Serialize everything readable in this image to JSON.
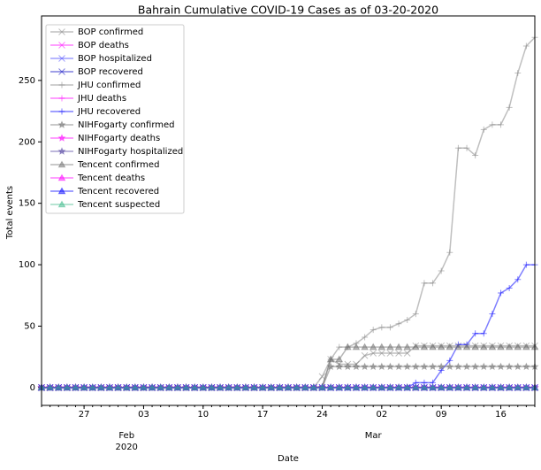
{
  "chart_data": {
    "type": "line",
    "title": "Bahrain Cumulative COVID-19 Cases as of 03-20-2020",
    "x_label": "Date",
    "y_label": "Total events",
    "alpha": 0.5,
    "legend": "upper left",
    "x": [
      "2020-01-22",
      "2020-01-23",
      "2020-01-24",
      "2020-01-25",
      "2020-01-26",
      "2020-01-27",
      "2020-01-28",
      "2020-01-29",
      "2020-01-30",
      "2020-01-31",
      "2020-02-01",
      "2020-02-02",
      "2020-02-03",
      "2020-02-04",
      "2020-02-05",
      "2020-02-06",
      "2020-02-07",
      "2020-02-08",
      "2020-02-09",
      "2020-02-10",
      "2020-02-11",
      "2020-02-12",
      "2020-02-13",
      "2020-02-14",
      "2020-02-15",
      "2020-02-16",
      "2020-02-17",
      "2020-02-18",
      "2020-02-19",
      "2020-02-20",
      "2020-02-21",
      "2020-02-22",
      "2020-02-23",
      "2020-02-24",
      "2020-02-25",
      "2020-02-26",
      "2020-02-27",
      "2020-02-28",
      "2020-02-29",
      "2020-03-01",
      "2020-03-02",
      "2020-03-03",
      "2020-03-04",
      "2020-03-05",
      "2020-03-06",
      "2020-03-07",
      "2020-03-08",
      "2020-03-09",
      "2020-03-10",
      "2020-03-11",
      "2020-03-12",
      "2020-03-13",
      "2020-03-14",
      "2020-03-15",
      "2020-03-16",
      "2020-03-17",
      "2020-03-18",
      "2020-03-19",
      "2020-03-20"
    ],
    "xlim": [
      "2020-01-22",
      "2020-03-20"
    ],
    "xticks": [
      {
        "value": "2020-01-27",
        "label": "27"
      },
      {
        "value": "2020-02-03",
        "label": "03"
      },
      {
        "value": "2020-02-10",
        "label": "10"
      },
      {
        "value": "2020-02-17",
        "label": "17"
      },
      {
        "value": "2020-02-24",
        "label": "24"
      },
      {
        "value": "2020-03-02",
        "label": "02"
      },
      {
        "value": "2020-03-09",
        "label": "09"
      },
      {
        "value": "2020-03-16",
        "label": "16"
      }
    ],
    "month_labels": [
      {
        "value": "2020-02-01",
        "label": "Feb"
      },
      {
        "value": "2020-03-01",
        "label": "Mar"
      }
    ],
    "year_labels": [
      {
        "value": "2020-02-01",
        "label": "2020"
      }
    ],
    "ylim": [
      -14.5,
      302.5
    ],
    "yticks": [
      0,
      50,
      100,
      150,
      200,
      250
    ],
    "series": [
      {
        "name": "BOP confirmed",
        "color": "#808080",
        "marker": "x",
        "values": [
          0,
          0,
          0,
          0,
          0,
          0,
          0,
          0,
          0,
          0,
          0,
          0,
          0,
          0,
          0,
          0,
          0,
          0,
          0,
          0,
          0,
          0,
          0,
          0,
          0,
          0,
          0,
          0,
          0,
          0,
          0,
          0,
          0,
          9,
          23,
          19,
          19,
          19,
          26,
          28,
          28,
          28,
          28,
          28,
          34,
          34,
          34,
          34,
          34,
          34,
          34,
          34,
          34,
          34,
          34,
          34,
          34,
          34,
          34
        ]
      },
      {
        "name": "BOP deaths",
        "color": "#ff00ff",
        "marker": "x",
        "values": [
          0,
          0,
          0,
          0,
          0,
          0,
          0,
          0,
          0,
          0,
          0,
          0,
          0,
          0,
          0,
          0,
          0,
          0,
          0,
          0,
          0,
          0,
          0,
          0,
          0,
          0,
          0,
          0,
          0,
          0,
          0,
          0,
          0,
          0,
          0,
          0,
          0,
          0,
          0,
          0,
          0,
          0,
          0,
          0,
          0,
          0,
          0,
          0,
          0,
          0,
          0,
          0,
          0,
          0,
          0,
          0,
          0,
          0,
          0
        ]
      },
      {
        "name": "BOP hospitalized",
        "color": "#4040ff",
        "marker": "x",
        "values": [
          0,
          0,
          0,
          0,
          0,
          0,
          0,
          0,
          0,
          0,
          0,
          0,
          0,
          0,
          0,
          0,
          0,
          0,
          0,
          0,
          0,
          0,
          0,
          0,
          0,
          0,
          0,
          0,
          0,
          0,
          0,
          0,
          0,
          0,
          0,
          0,
          0,
          0,
          0,
          0,
          0,
          0,
          0,
          0,
          0,
          0,
          0,
          0,
          0,
          0,
          0,
          0,
          0,
          0,
          0,
          0,
          0,
          0,
          0
        ]
      },
      {
        "name": "BOP recovered",
        "color": "#0000c0",
        "marker": "x",
        "values": [
          0,
          0,
          0,
          0,
          0,
          0,
          0,
          0,
          0,
          0,
          0,
          0,
          0,
          0,
          0,
          0,
          0,
          0,
          0,
          0,
          0,
          0,
          0,
          0,
          0,
          0,
          0,
          0,
          0,
          0,
          0,
          0,
          0,
          0,
          0,
          0,
          0,
          0,
          0,
          0,
          0,
          0,
          0,
          0,
          0,
          0,
          0,
          0,
          0,
          0,
          0,
          0,
          0,
          0,
          0,
          0,
          0,
          0,
          0
        ]
      },
      {
        "name": "JHU confirmed",
        "color": "#808080",
        "marker": "+",
        "values": [
          0,
          0,
          0,
          0,
          0,
          0,
          0,
          0,
          0,
          0,
          0,
          0,
          0,
          0,
          0,
          0,
          0,
          0,
          0,
          0,
          0,
          0,
          0,
          0,
          0,
          0,
          0,
          0,
          0,
          0,
          0,
          0,
          0,
          1,
          23,
          33,
          33,
          36,
          41,
          47,
          49,
          49,
          52,
          55,
          60,
          85,
          85,
          95,
          110,
          195,
          195,
          189,
          210,
          214,
          214,
          228,
          256,
          278,
          285
        ]
      },
      {
        "name": "JHU deaths",
        "color": "#ff00ff",
        "marker": "+",
        "values": [
          0,
          0,
          0,
          0,
          0,
          0,
          0,
          0,
          0,
          0,
          0,
          0,
          0,
          0,
          0,
          0,
          0,
          0,
          0,
          0,
          0,
          0,
          0,
          0,
          0,
          0,
          0,
          0,
          0,
          0,
          0,
          0,
          0,
          0,
          0,
          0,
          0,
          0,
          0,
          0,
          0,
          0,
          0,
          0,
          0,
          0,
          0,
          0,
          0,
          0,
          0,
          0,
          0,
          0,
          0,
          0,
          0,
          0,
          0
        ]
      },
      {
        "name": "JHU recovered",
        "color": "#0000ff",
        "marker": "+",
        "values": [
          0,
          0,
          0,
          0,
          0,
          0,
          0,
          0,
          0,
          0,
          0,
          0,
          0,
          0,
          0,
          0,
          0,
          0,
          0,
          0,
          0,
          0,
          0,
          0,
          0,
          0,
          0,
          0,
          0,
          0,
          0,
          0,
          0,
          0,
          0,
          0,
          0,
          0,
          0,
          0,
          0,
          0,
          0,
          0,
          4,
          4,
          4,
          14,
          22,
          35,
          35,
          44,
          44,
          60,
          77,
          81,
          88,
          100,
          100
        ]
      },
      {
        "name": "NIHFogarty confirmed",
        "color": "#707070",
        "marker": "*",
        "values": [
          0,
          0,
          0,
          0,
          0,
          0,
          0,
          0,
          0,
          0,
          0,
          0,
          0,
          0,
          0,
          0,
          0,
          0,
          0,
          0,
          0,
          0,
          0,
          0,
          0,
          0,
          0,
          0,
          0,
          0,
          0,
          0,
          0,
          0,
          17,
          17,
          17,
          17,
          17,
          17,
          17,
          17,
          17,
          17,
          17,
          17,
          17,
          17,
          17,
          17,
          17,
          17,
          17,
          17,
          17,
          17,
          17,
          17,
          17
        ]
      },
      {
        "name": "NIHFogarty deaths",
        "color": "#ff00ff",
        "marker": "*",
        "values": [
          0,
          0,
          0,
          0,
          0,
          0,
          0,
          0,
          0,
          0,
          0,
          0,
          0,
          0,
          0,
          0,
          0,
          0,
          0,
          0,
          0,
          0,
          0,
          0,
          0,
          0,
          0,
          0,
          0,
          0,
          0,
          0,
          0,
          0,
          0,
          0,
          0,
          0,
          0,
          0,
          0,
          0,
          0,
          0,
          0,
          0,
          0,
          0,
          0,
          0,
          0,
          0,
          0,
          0,
          0,
          0,
          0,
          0,
          0
        ]
      },
      {
        "name": "NIHFogarty hospitalized",
        "color": "#5040a0",
        "marker": "*",
        "values": [
          0,
          0,
          0,
          0,
          0,
          0,
          0,
          0,
          0,
          0,
          0,
          0,
          0,
          0,
          0,
          0,
          0,
          0,
          0,
          0,
          0,
          0,
          0,
          0,
          0,
          0,
          0,
          0,
          0,
          0,
          0,
          0,
          0,
          0,
          0,
          0,
          0,
          0,
          0,
          0,
          0,
          0,
          0,
          0,
          0,
          0,
          0,
          0,
          0,
          0,
          0,
          0,
          0,
          0,
          0,
          0,
          0,
          0,
          0
        ]
      },
      {
        "name": "Tencent confirmed",
        "color": "#707070",
        "marker": "^",
        "values": [
          0,
          0,
          0,
          0,
          0,
          0,
          0,
          0,
          0,
          0,
          0,
          0,
          0,
          0,
          0,
          0,
          0,
          0,
          0,
          0,
          0,
          0,
          0,
          0,
          0,
          0,
          0,
          0,
          0,
          0,
          0,
          0,
          0,
          0,
          23,
          23,
          33,
          33,
          33,
          33,
          33,
          33,
          33,
          33,
          33,
          33,
          33,
          33,
          33,
          33,
          33,
          33,
          33,
          33,
          33,
          33,
          33,
          33,
          33
        ]
      },
      {
        "name": "Tencent deaths",
        "color": "#ff00ff",
        "marker": "^",
        "values": [
          0,
          0,
          0,
          0,
          0,
          0,
          0,
          0,
          0,
          0,
          0,
          0,
          0,
          0,
          0,
          0,
          0,
          0,
          0,
          0,
          0,
          0,
          0,
          0,
          0,
          0,
          0,
          0,
          0,
          0,
          0,
          0,
          0,
          0,
          0,
          0,
          0,
          0,
          0,
          0,
          0,
          0,
          0,
          0,
          0,
          0,
          0,
          0,
          0,
          0,
          0,
          0,
          0,
          0,
          0,
          0,
          0,
          0,
          0
        ]
      },
      {
        "name": "Tencent recovered",
        "color": "#0000ff",
        "marker": "^",
        "values": [
          0,
          0,
          0,
          0,
          0,
          0,
          0,
          0,
          0,
          0,
          0,
          0,
          0,
          0,
          0,
          0,
          0,
          0,
          0,
          0,
          0,
          0,
          0,
          0,
          0,
          0,
          0,
          0,
          0,
          0,
          0,
          0,
          0,
          0,
          0,
          0,
          0,
          0,
          0,
          0,
          0,
          0,
          0,
          0,
          0,
          0,
          0,
          0,
          0,
          0,
          0,
          0,
          0,
          0,
          0,
          0,
          0,
          0,
          0
        ]
      },
      {
        "name": "Tencent suspected",
        "color": "#3cb98a",
        "marker": "^",
        "values": [
          0,
          0,
          0,
          0,
          0,
          0,
          0,
          0,
          0,
          0,
          0,
          0,
          0,
          0,
          0,
          0,
          0,
          0,
          0,
          0,
          0,
          0,
          0,
          0,
          0,
          0,
          0,
          0,
          0,
          0,
          0,
          0,
          0,
          0,
          0,
          0,
          0,
          0,
          0,
          0,
          0,
          0,
          0,
          0,
          0,
          0,
          0,
          0,
          0,
          0,
          0,
          0,
          0,
          0,
          0,
          0,
          0,
          0,
          0
        ]
      }
    ]
  }
}
